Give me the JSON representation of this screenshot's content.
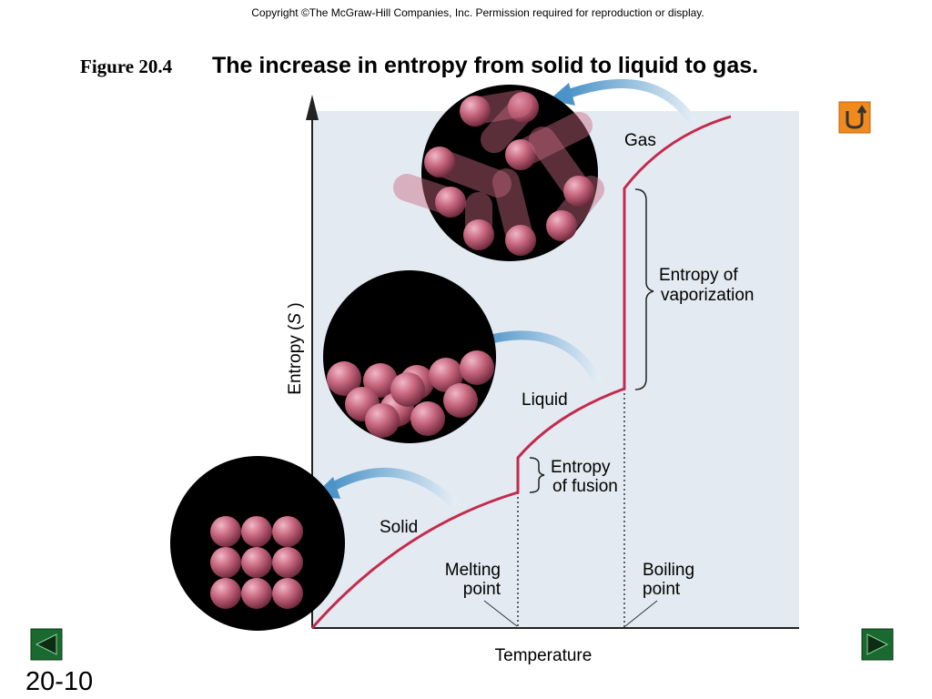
{
  "header": {
    "copyright": "Copyright ©The McGraw-Hill Companies, Inc.  Permission required for reproduction or display.",
    "figure_label": "Figure 20.4",
    "title": "The increase in entropy from solid to liquid to gas."
  },
  "diagram": {
    "y_axis_label": {
      "prefix": "Entropy (",
      "variable": "S",
      "suffix": " )"
    },
    "x_axis_label": "Temperature",
    "phases": {
      "solid": "Solid",
      "liquid": "Liquid",
      "gas": "Gas"
    },
    "vaporization": [
      "Entropy of",
      "vaporization"
    ],
    "fusion": [
      "Entropy",
      "of fusion"
    ],
    "melting_point": [
      "Melting",
      "point"
    ],
    "boiling_point": [
      "Boiling",
      "point"
    ]
  },
  "footer": {
    "slide_number": "20-10"
  }
}
